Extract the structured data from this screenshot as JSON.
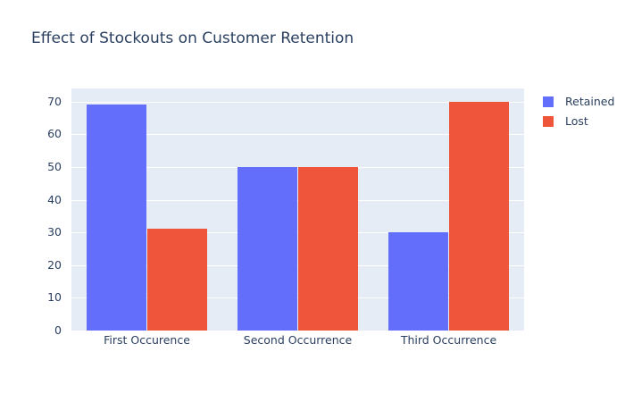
{
  "title": "Effect of Stockouts on Customer Retention",
  "colors": {
    "page_background": "#ffffff",
    "plot_background": "#E5ECF6",
    "gridline": "#ffffff",
    "text": "#2a3f5f",
    "retained": "#636EFA",
    "lost": "#EF553B"
  },
  "chart_data": {
    "type": "bar",
    "title": "Effect of Stockouts on Customer Retention",
    "categories": [
      "First Occurence",
      "Second Occurrence",
      "Third Occurrence"
    ],
    "series": [
      {
        "name": "Retained",
        "color": "#636EFA",
        "values": [
          69,
          50,
          30
        ]
      },
      {
        "name": "Lost",
        "color": "#EF553B",
        "values": [
          31,
          50,
          70
        ]
      }
    ],
    "xlabel": "",
    "ylabel": "",
    "ylim": [
      0,
      74
    ],
    "yticks": [
      0,
      10,
      20,
      30,
      40,
      50,
      60,
      70
    ],
    "grid": true,
    "legend_position": "right",
    "bar_layout": {
      "group_bar_width_pct": 40,
      "first_bar_left_pct": 10,
      "second_bar_left_pct": 50
    }
  },
  "legend": {
    "items": [
      {
        "label": "Retained",
        "color": "#636EFA"
      },
      {
        "label": "Lost",
        "color": "#EF553B"
      }
    ]
  }
}
